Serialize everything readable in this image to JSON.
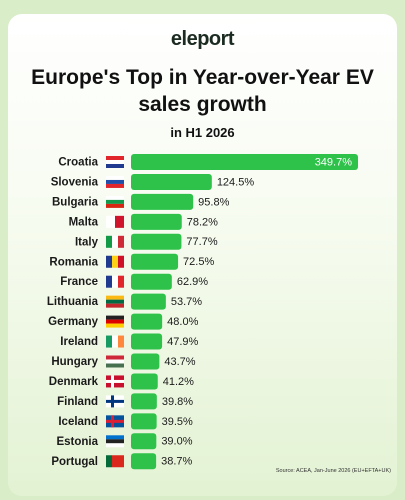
{
  "brand": "eleport",
  "chart_data": {
    "type": "hbar",
    "title": "Europe's Top in Year-over-Year EV sales growth",
    "subtitle": "in H1 2026",
    "categories": [
      "Croatia",
      "Slovenia",
      "Bulgaria",
      "Malta",
      "Italy",
      "Romania",
      "France",
      "Lithuania",
      "Germany",
      "Ireland",
      "Hungary",
      "Denmark",
      "Finland",
      "Iceland",
      "Estonia",
      "Portugal"
    ],
    "values": [
      349.7,
      124.5,
      95.8,
      78.2,
      77.7,
      72.5,
      62.9,
      53.7,
      48.0,
      47.9,
      43.7,
      41.2,
      39.8,
      39.5,
      39.0,
      38.7
    ],
    "value_labels": [
      "349.7%",
      "124.5%",
      "95.8%",
      "78.2%",
      "77.7%",
      "72.5%",
      "62.9%",
      "53.7%",
      "48.0%",
      "47.9%",
      "43.7%",
      "41.2%",
      "39.8%",
      "39.5%",
      "39.0%",
      "38.7%"
    ],
    "color": "#2ec24a",
    "source": "Source: ACEA, Jan-June 2026 (EU+EFTA+UK)"
  }
}
